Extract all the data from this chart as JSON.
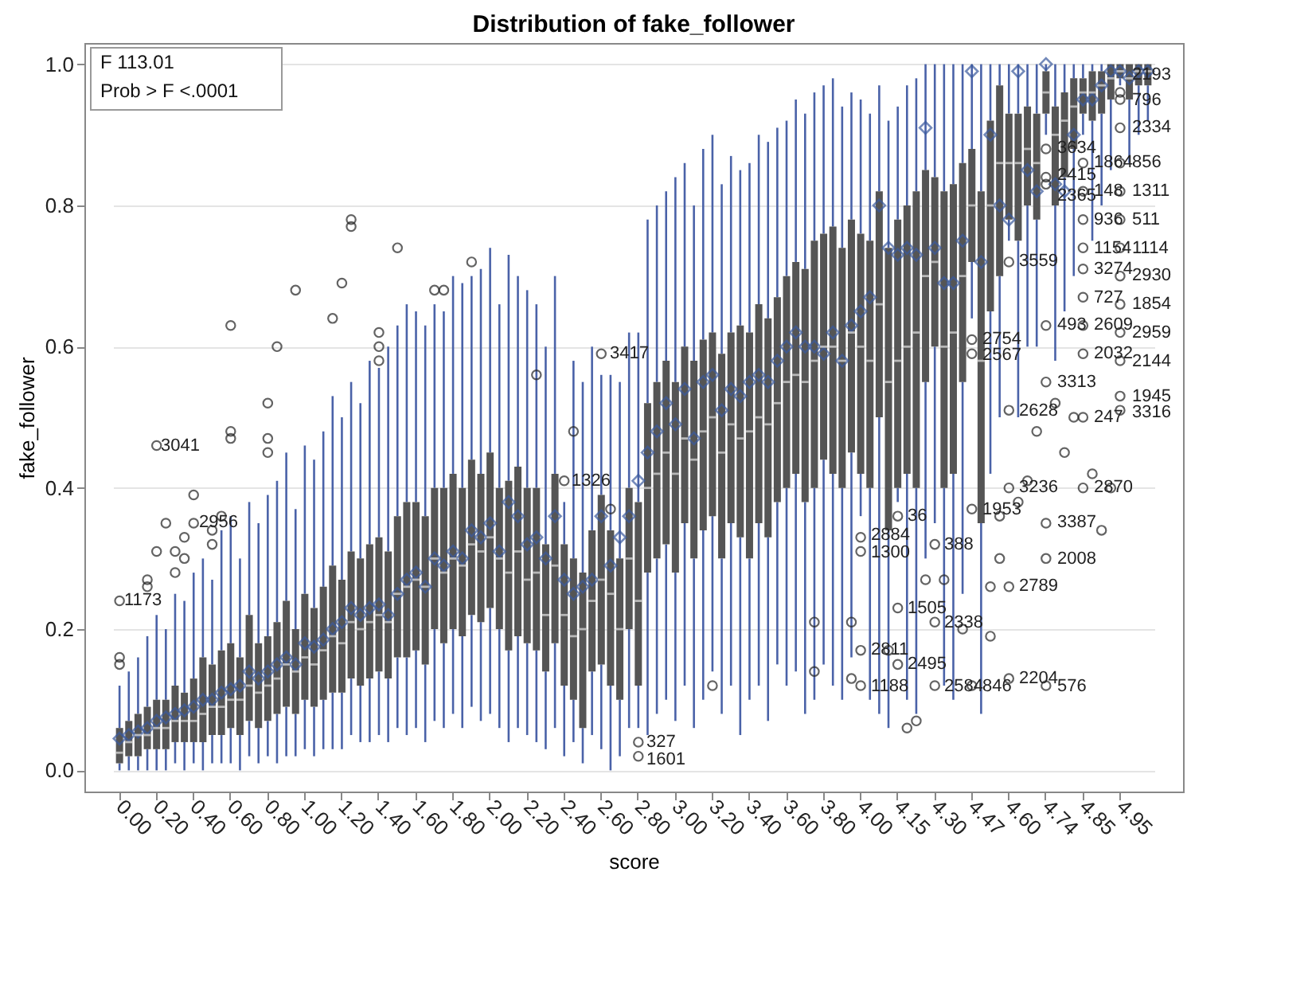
{
  "chart_data": {
    "type": "box",
    "title": "Distribution of fake_follower",
    "xlabel": "score",
    "ylabel": "fake_follower",
    "categories": [
      "0.00",
      null,
      null,
      null,
      "0.20",
      null,
      null,
      null,
      "0.40",
      null,
      null,
      null,
      "0.60",
      null,
      null,
      null,
      "0.80",
      null,
      null,
      null,
      "1.00",
      null,
      null,
      null,
      "1.20",
      null,
      null,
      null,
      "1.40",
      null,
      null,
      null,
      "1.60",
      null,
      null,
      null,
      "1.80",
      null,
      null,
      null,
      "2.00",
      null,
      null,
      null,
      "2.20",
      null,
      null,
      null,
      "2.40",
      null,
      null,
      null,
      "2.60",
      null,
      null,
      null,
      "2.80",
      null,
      null,
      null,
      "3.00",
      null,
      null,
      null,
      "3.20",
      null,
      null,
      null,
      "3.40",
      null,
      null,
      null,
      "3.60",
      null,
      null,
      null,
      "3.80",
      null,
      null,
      null,
      "4.00",
      null,
      null,
      null,
      "4.15",
      null,
      null,
      null,
      "4.30",
      null,
      null,
      null,
      "4.47",
      null,
      null,
      null,
      "4.60",
      null,
      null,
      null,
      "4.74",
      null,
      null,
      null,
      "4.85",
      null,
      null,
      null,
      "4.95",
      null,
      null,
      null
    ],
    "ylim": [
      -0.03,
      1.03
    ],
    "yticks": [
      {
        "value": 0,
        "label": "0.0"
      },
      {
        "value": 0.2,
        "label": "0.2"
      },
      {
        "value": 0.4,
        "label": "0.4"
      },
      {
        "value": 0.6,
        "label": "0.6"
      },
      {
        "value": 0.8,
        "label": "0.8"
      },
      {
        "value": 1,
        "label": "1.0"
      }
    ],
    "grid": "y",
    "series": [
      {
        "color": "#555555",
        "boxes": [
          {
            "low": 0.0,
            "q1": 0.01,
            "median": 0.025,
            "q3": 0.06,
            "high": 0.12,
            "mean": 0.045,
            "outliers": [
              0.15,
              0.16,
              0.24
            ]
          },
          {
            "low": 0.0,
            "q1": 0.02,
            "median": 0.04,
            "q3": 0.07,
            "high": 0.14,
            "mean": 0.05
          },
          {
            "low": 0.0,
            "q1": 0.02,
            "median": 0.05,
            "q3": 0.08,
            "high": 0.16,
            "mean": 0.055
          },
          {
            "low": 0.0,
            "q1": 0.03,
            "median": 0.05,
            "q3": 0.09,
            "high": 0.19,
            "mean": 0.06,
            "outliers": [
              0.26,
              0.27
            ]
          },
          {
            "low": 0.0,
            "q1": 0.03,
            "median": 0.06,
            "q3": 0.1,
            "high": 0.22,
            "mean": 0.07,
            "outliers": [
              0.31,
              0.46
            ]
          },
          {
            "low": 0.0,
            "q1": 0.03,
            "median": 0.06,
            "q3": 0.1,
            "high": 0.2,
            "mean": 0.075,
            "outliers": [
              0.35
            ]
          },
          {
            "low": 0.01,
            "q1": 0.04,
            "median": 0.07,
            "q3": 0.12,
            "high": 0.25,
            "mean": 0.08,
            "outliers": [
              0.28,
              0.31
            ]
          },
          {
            "low": 0.0,
            "q1": 0.04,
            "median": 0.07,
            "q3": 0.11,
            "high": 0.24,
            "mean": 0.085,
            "outliers": [
              0.3,
              0.33
            ]
          },
          {
            "low": 0.01,
            "q1": 0.04,
            "median": 0.07,
            "q3": 0.13,
            "high": 0.28,
            "mean": 0.09,
            "outliers": [
              0.35,
              0.39
            ]
          },
          {
            "low": 0.0,
            "q1": 0.04,
            "median": 0.08,
            "q3": 0.16,
            "high": 0.3,
            "mean": 0.1
          },
          {
            "low": 0.01,
            "q1": 0.05,
            "median": 0.09,
            "q3": 0.15,
            "high": 0.27,
            "mean": 0.1,
            "outliers": [
              0.32,
              0.34
            ]
          },
          {
            "low": 0.01,
            "q1": 0.05,
            "median": 0.09,
            "q3": 0.17,
            "high": 0.34,
            "mean": 0.11,
            "outliers": [
              0.36
            ]
          },
          {
            "low": 0.01,
            "q1": 0.06,
            "median": 0.1,
            "q3": 0.18,
            "high": 0.36,
            "mean": 0.115,
            "outliers": [
              0.47,
              0.48,
              0.63
            ]
          },
          {
            "low": 0.0,
            "q1": 0.05,
            "median": 0.1,
            "q3": 0.16,
            "high": 0.3,
            "mean": 0.12
          },
          {
            "low": 0.02,
            "q1": 0.07,
            "median": 0.12,
            "q3": 0.22,
            "high": 0.38,
            "mean": 0.14
          },
          {
            "low": 0.01,
            "q1": 0.06,
            "median": 0.11,
            "q3": 0.18,
            "high": 0.35,
            "mean": 0.13
          },
          {
            "low": 0.02,
            "q1": 0.07,
            "median": 0.12,
            "q3": 0.19,
            "high": 0.39,
            "mean": 0.14,
            "outliers": [
              0.45,
              0.47,
              0.52
            ]
          },
          {
            "low": 0.01,
            "q1": 0.08,
            "median": 0.13,
            "q3": 0.21,
            "high": 0.41,
            "mean": 0.15,
            "outliers": [
              0.6
            ]
          },
          {
            "low": 0.02,
            "q1": 0.09,
            "median": 0.15,
            "q3": 0.24,
            "high": 0.45,
            "mean": 0.16
          },
          {
            "low": 0.02,
            "q1": 0.08,
            "median": 0.14,
            "q3": 0.2,
            "high": 0.37,
            "mean": 0.15,
            "outliers": [
              0.68
            ]
          },
          {
            "low": 0.03,
            "q1": 0.1,
            "median": 0.16,
            "q3": 0.25,
            "high": 0.46,
            "mean": 0.18
          },
          {
            "low": 0.02,
            "q1": 0.09,
            "median": 0.15,
            "q3": 0.23,
            "high": 0.44,
            "mean": 0.175
          },
          {
            "low": 0.03,
            "q1": 0.1,
            "median": 0.17,
            "q3": 0.26,
            "high": 0.48,
            "mean": 0.185
          },
          {
            "low": 0.03,
            "q1": 0.11,
            "median": 0.19,
            "q3": 0.29,
            "high": 0.53,
            "mean": 0.2,
            "outliers": [
              0.64
            ]
          },
          {
            "low": 0.03,
            "q1": 0.11,
            "median": 0.18,
            "q3": 0.27,
            "high": 0.5,
            "mean": 0.21,
            "outliers": [
              0.69
            ]
          },
          {
            "low": 0.05,
            "q1": 0.13,
            "median": 0.21,
            "q3": 0.31,
            "high": 0.55,
            "mean": 0.23,
            "outliers": [
              0.77,
              0.78
            ]
          },
          {
            "low": 0.04,
            "q1": 0.12,
            "median": 0.2,
            "q3": 0.3,
            "high": 0.52,
            "mean": 0.22
          },
          {
            "low": 0.04,
            "q1": 0.13,
            "median": 0.21,
            "q3": 0.32,
            "high": 0.58,
            "mean": 0.23
          },
          {
            "low": 0.05,
            "q1": 0.14,
            "median": 0.22,
            "q3": 0.33,
            "high": 0.57,
            "mean": 0.235,
            "outliers": [
              0.58,
              0.6,
              0.62
            ]
          },
          {
            "low": 0.04,
            "q1": 0.13,
            "median": 0.21,
            "q3": 0.31,
            "high": 0.6,
            "mean": 0.22
          },
          {
            "low": 0.06,
            "q1": 0.16,
            "median": 0.25,
            "q3": 0.36,
            "high": 0.63,
            "mean": 0.25,
            "outliers": [
              0.74
            ]
          },
          {
            "low": 0.05,
            "q1": 0.16,
            "median": 0.26,
            "q3": 0.38,
            "high": 0.66,
            "mean": 0.27
          },
          {
            "low": 0.06,
            "q1": 0.17,
            "median": 0.27,
            "q3": 0.38,
            "high": 0.65,
            "mean": 0.28
          },
          {
            "low": 0.04,
            "q1": 0.15,
            "median": 0.26,
            "q3": 0.36,
            "high": 0.63,
            "mean": 0.26
          },
          {
            "low": 0.07,
            "q1": 0.2,
            "median": 0.3,
            "q3": 0.4,
            "high": 0.66,
            "mean": 0.3,
            "outliers": [
              0.68
            ]
          },
          {
            "low": 0.06,
            "q1": 0.18,
            "median": 0.28,
            "q3": 0.4,
            "high": 0.65,
            "mean": 0.29,
            "outliers": [
              0.68
            ]
          },
          {
            "low": 0.08,
            "q1": 0.2,
            "median": 0.3,
            "q3": 0.42,
            "high": 0.7,
            "mean": 0.31
          },
          {
            "low": 0.06,
            "q1": 0.19,
            "median": 0.29,
            "q3": 0.4,
            "high": 0.69,
            "mean": 0.3
          },
          {
            "low": 0.09,
            "q1": 0.22,
            "median": 0.32,
            "q3": 0.44,
            "high": 0.7,
            "mean": 0.34,
            "outliers": [
              0.72
            ]
          },
          {
            "low": 0.07,
            "q1": 0.21,
            "median": 0.31,
            "q3": 0.42,
            "high": 0.71,
            "mean": 0.33
          },
          {
            "low": 0.08,
            "q1": 0.23,
            "median": 0.33,
            "q3": 0.45,
            "high": 0.74,
            "mean": 0.35
          },
          {
            "low": 0.06,
            "q1": 0.2,
            "median": 0.3,
            "q3": 0.4,
            "high": 0.66,
            "mean": 0.31
          },
          {
            "low": 0.04,
            "q1": 0.17,
            "median": 0.28,
            "q3": 0.41,
            "high": 0.73,
            "mean": 0.38
          },
          {
            "low": 0.06,
            "q1": 0.19,
            "median": 0.31,
            "q3": 0.43,
            "high": 0.7,
            "mean": 0.36
          },
          {
            "low": 0.05,
            "q1": 0.18,
            "median": 0.27,
            "q3": 0.4,
            "high": 0.68,
            "mean": 0.32
          },
          {
            "low": 0.04,
            "q1": 0.17,
            "median": 0.28,
            "q3": 0.4,
            "high": 0.66,
            "mean": 0.33,
            "outliers": [
              0.56
            ]
          },
          {
            "low": 0.03,
            "q1": 0.14,
            "median": 0.22,
            "q3": 0.32,
            "high": 0.6,
            "mean": 0.3
          },
          {
            "low": 0.06,
            "q1": 0.18,
            "median": 0.29,
            "q3": 0.42,
            "high": 0.7,
            "mean": 0.36
          },
          {
            "low": 0.02,
            "q1": 0.12,
            "median": 0.22,
            "q3": 0.32,
            "high": 0.38,
            "mean": 0.27,
            "outliers": [
              0.41
            ]
          },
          {
            "low": 0.04,
            "q1": 0.1,
            "median": 0.19,
            "q3": 0.3,
            "high": 0.58,
            "mean": 0.25,
            "outliers": [
              0.48
            ]
          },
          {
            "low": 0.01,
            "q1": 0.06,
            "median": 0.2,
            "q3": 0.28,
            "high": 0.55,
            "mean": 0.26
          },
          {
            "low": 0.05,
            "q1": 0.14,
            "median": 0.24,
            "q3": 0.34,
            "high": 0.6,
            "mean": 0.27
          },
          {
            "low": 0.03,
            "q1": 0.15,
            "median": 0.27,
            "q3": 0.39,
            "high": 0.56,
            "mean": 0.36,
            "outliers": [
              0.59
            ]
          },
          {
            "low": 0.0,
            "q1": 0.12,
            "median": 0.25,
            "q3": 0.34,
            "high": 0.56,
            "mean": 0.29,
            "outliers": [
              0.37
            ]
          },
          {
            "low": 0.02,
            "q1": 0.1,
            "median": 0.2,
            "q3": 0.3,
            "high": 0.55,
            "mean": 0.33
          },
          {
            "low": 0.06,
            "q1": 0.2,
            "median": 0.3,
            "q3": 0.4,
            "high": 0.62,
            "mean": 0.36
          },
          {
            "low": 0.06,
            "q1": 0.12,
            "median": 0.24,
            "q3": 0.38,
            "high": 0.62,
            "mean": 0.41,
            "outliers": [
              0.04,
              0.02
            ]
          },
          {
            "low": 0.05,
            "q1": 0.28,
            "median": 0.4,
            "q3": 0.52,
            "high": 0.78,
            "mean": 0.45
          },
          {
            "low": 0.08,
            "q1": 0.3,
            "median": 0.42,
            "q3": 0.55,
            "high": 0.8,
            "mean": 0.48
          },
          {
            "low": 0.1,
            "q1": 0.32,
            "median": 0.45,
            "q3": 0.58,
            "high": 0.82,
            "mean": 0.52
          },
          {
            "low": 0.07,
            "q1": 0.28,
            "median": 0.42,
            "q3": 0.55,
            "high": 0.84,
            "mean": 0.49
          },
          {
            "low": 0.12,
            "q1": 0.35,
            "median": 0.47,
            "q3": 0.6,
            "high": 0.86,
            "mean": 0.54
          },
          {
            "low": 0.06,
            "q1": 0.3,
            "median": 0.44,
            "q3": 0.58,
            "high": 0.8,
            "mean": 0.47
          },
          {
            "low": 0.1,
            "q1": 0.34,
            "median": 0.48,
            "q3": 0.61,
            "high": 0.88,
            "mean": 0.55
          },
          {
            "low": 0.14,
            "q1": 0.36,
            "median": 0.5,
            "q3": 0.62,
            "high": 0.9,
            "mean": 0.56,
            "outliers": [
              0.12
            ]
          },
          {
            "low": 0.08,
            "q1": 0.3,
            "median": 0.45,
            "q3": 0.59,
            "high": 0.83,
            "mean": 0.51
          },
          {
            "low": 0.12,
            "q1": 0.35,
            "median": 0.49,
            "q3": 0.62,
            "high": 0.87,
            "mean": 0.54
          },
          {
            "low": 0.05,
            "q1": 0.33,
            "median": 0.47,
            "q3": 0.63,
            "high": 0.85,
            "mean": 0.53
          },
          {
            "low": 0.1,
            "q1": 0.3,
            "median": 0.48,
            "q3": 0.62,
            "high": 0.86,
            "mean": 0.55
          },
          {
            "low": 0.12,
            "q1": 0.35,
            "median": 0.5,
            "q3": 0.66,
            "high": 0.9,
            "mean": 0.56
          },
          {
            "low": 0.07,
            "q1": 0.33,
            "median": 0.49,
            "q3": 0.64,
            "high": 0.89,
            "mean": 0.55
          },
          {
            "low": 0.15,
            "q1": 0.38,
            "median": 0.52,
            "q3": 0.67,
            "high": 0.91,
            "mean": 0.58
          },
          {
            "low": 0.12,
            "q1": 0.4,
            "median": 0.55,
            "q3": 0.7,
            "high": 0.92,
            "mean": 0.6
          },
          {
            "low": 0.14,
            "q1": 0.42,
            "median": 0.56,
            "q3": 0.72,
            "high": 0.95,
            "mean": 0.62
          },
          {
            "low": 0.08,
            "q1": 0.38,
            "median": 0.55,
            "q3": 0.71,
            "high": 0.93,
            "mean": 0.6
          },
          {
            "low": 0.1,
            "q1": 0.4,
            "median": 0.58,
            "q3": 0.75,
            "high": 0.96,
            "mean": 0.6,
            "outliers": [
              0.14,
              0.21
            ]
          },
          {
            "low": 0.15,
            "q1": 0.44,
            "median": 0.6,
            "q3": 0.76,
            "high": 0.97,
            "mean": 0.59
          },
          {
            "low": 0.12,
            "q1": 0.42,
            "median": 0.6,
            "q3": 0.77,
            "high": 0.98,
            "mean": 0.62
          },
          {
            "low": 0.1,
            "q1": 0.4,
            "median": 0.58,
            "q3": 0.74,
            "high": 0.94,
            "mean": 0.58
          },
          {
            "low": 0.16,
            "q1": 0.45,
            "median": 0.62,
            "q3": 0.78,
            "high": 0.96,
            "mean": 0.63,
            "outliers": [
              0.13,
              0.21
            ]
          },
          {
            "low": 0.36,
            "q1": 0.42,
            "median": 0.6,
            "q3": 0.76,
            "high": 0.95,
            "mean": 0.65,
            "outliers": [
              0.17,
              0.12,
              0.33,
              0.31
            ]
          },
          {
            "low": 0.1,
            "q1": 0.4,
            "median": 0.58,
            "q3": 0.75,
            "high": 0.93,
            "mean": 0.67
          },
          {
            "low": 0.08,
            "q1": 0.5,
            "median": 0.66,
            "q3": 0.82,
            "high": 0.97,
            "mean": 0.8
          },
          {
            "low": 0.06,
            "q1": 0.34,
            "median": 0.55,
            "q3": 0.74,
            "high": 0.92,
            "mean": 0.74,
            "outliers": [
              0.17
            ]
          },
          {
            "low": 0.38,
            "q1": 0.4,
            "median": 0.58,
            "q3": 0.78,
            "high": 0.94,
            "mean": 0.73,
            "outliers": [
              0.23,
              0.15,
              0.36
            ]
          },
          {
            "low": 0.1,
            "q1": 0.42,
            "median": 0.6,
            "q3": 0.8,
            "high": 0.97,
            "mean": 0.74,
            "outliers": [
              0.06
            ]
          },
          {
            "low": 0.08,
            "q1": 0.4,
            "median": 0.62,
            "q3": 0.82,
            "high": 0.98,
            "mean": 0.73,
            "outliers": [
              0.07
            ]
          },
          {
            "low": 0.3,
            "q1": 0.55,
            "median": 0.7,
            "q3": 0.85,
            "high": 1.0,
            "mean": 0.91,
            "outliers": [
              0.27
            ]
          },
          {
            "low": 0.35,
            "q1": 0.6,
            "median": 0.72,
            "q3": 0.84,
            "high": 1.0,
            "mean": 0.74,
            "outliers": [
              0.21,
              0.12,
              0.32
            ]
          },
          {
            "low": 0.12,
            "q1": 0.4,
            "median": 0.6,
            "q3": 0.82,
            "high": 1.0,
            "mean": 0.69,
            "outliers": [
              0.27
            ]
          },
          {
            "low": 0.1,
            "q1": 0.42,
            "median": 0.62,
            "q3": 0.83,
            "high": 1.0,
            "mean": 0.69
          },
          {
            "low": 0.25,
            "q1": 0.55,
            "median": 0.7,
            "q3": 0.86,
            "high": 1.0,
            "mean": 0.75,
            "outliers": [
              0.2
            ]
          },
          {
            "low": 0.64,
            "q1": 0.72,
            "median": 0.8,
            "q3": 0.88,
            "high": 1.0,
            "mean": 0.99,
            "outliers": [
              0.12,
              0.37,
              0.61,
              0.59
            ]
          },
          {
            "low": 0.08,
            "q1": 0.35,
            "median": 0.58,
            "q3": 0.82,
            "high": 1.0,
            "mean": 0.72
          },
          {
            "low": 0.42,
            "q1": 0.65,
            "median": 0.8,
            "q3": 0.92,
            "high": 1.0,
            "mean": 0.9,
            "outliers": [
              0.26,
              0.19
            ]
          },
          {
            "low": 0.5,
            "q1": 0.7,
            "median": 0.86,
            "q3": 0.97,
            "high": 1.0,
            "mean": 0.8,
            "outliers": [
              0.36,
              0.3
            ]
          },
          {
            "low": 0.75,
            "q1": 0.78,
            "median": 0.86,
            "q3": 0.93,
            "high": 1.0,
            "mean": 0.78,
            "outliers": [
              0.72,
              0.51,
              0.4,
              0.26,
              0.13
            ]
          },
          {
            "low": 0.5,
            "q1": 0.75,
            "median": 0.86,
            "q3": 0.93,
            "high": 1.0,
            "mean": 0.99,
            "outliers": [
              0.38
            ]
          },
          {
            "low": 0.6,
            "q1": 0.8,
            "median": 0.88,
            "q3": 0.94,
            "high": 1.0,
            "mean": 0.85,
            "outliers": [
              0.41
            ]
          },
          {
            "low": 0.6,
            "q1": 0.78,
            "median": 0.86,
            "q3": 0.93,
            "high": 1.0,
            "mean": 0.82,
            "outliers": [
              0.48
            ]
          },
          {
            "low": 0.9,
            "q1": 0.93,
            "median": 0.96,
            "q3": 0.99,
            "high": 1.0,
            "mean": 1.0,
            "outliers": [
              0.88,
              0.84,
              0.83,
              0.63,
              0.55,
              0.35,
              0.3,
              0.12
            ]
          },
          {
            "low": 0.58,
            "q1": 0.8,
            "median": 0.9,
            "q3": 0.94,
            "high": 1.0,
            "mean": 0.83,
            "outliers": [
              0.52
            ]
          },
          {
            "low": 0.65,
            "q1": 0.84,
            "median": 0.92,
            "q3": 0.96,
            "high": 1.0,
            "mean": 0.82,
            "outliers": [
              0.45
            ]
          },
          {
            "low": 0.7,
            "q1": 0.88,
            "median": 0.94,
            "q3": 0.98,
            "high": 1.0,
            "mean": 0.9,
            "outliers": [
              0.5
            ]
          },
          {
            "low": 0.9,
            "q1": 0.93,
            "median": 0.96,
            "q3": 0.98,
            "high": 1.0,
            "mean": 0.95,
            "outliers": [
              0.86,
              0.82,
              0.78,
              0.74,
              0.71,
              0.67,
              0.63,
              0.59,
              0.5,
              0.4
            ]
          },
          {
            "low": 0.75,
            "q1": 0.92,
            "median": 0.96,
            "q3": 0.99,
            "high": 1.0,
            "mean": 0.95,
            "outliers": [
              0.42
            ]
          },
          {
            "low": 0.8,
            "q1": 0.93,
            "median": 0.97,
            "q3": 0.99,
            "high": 1.0,
            "mean": 0.97,
            "outliers": [
              0.34
            ]
          },
          {
            "low": 0.85,
            "q1": 0.95,
            "median": 0.98,
            "q3": 1.0,
            "high": 1.0,
            "mean": 0.99,
            "outliers": [
              0.4
            ]
          },
          {
            "low": 0.97,
            "q1": 0.98,
            "median": 0.99,
            "q3": 1.0,
            "high": 1.0,
            "mean": 0.99,
            "outliers": [
              0.96,
              0.95,
              0.91,
              0.86,
              0.82,
              0.78,
              0.74,
              0.7,
              0.66,
              0.62,
              0.58,
              0.53,
              0.51
            ]
          },
          {
            "low": 0.86,
            "q1": 0.95,
            "median": 0.98,
            "q3": 1.0,
            "high": 1.0,
            "mean": 0.98
          },
          {
            "low": 0.9,
            "q1": 0.97,
            "median": 0.99,
            "q3": 1.0,
            "high": 1.0,
            "mean": 0.99
          },
          {
            "low": 0.92,
            "q1": 0.97,
            "median": 0.99,
            "q3": 1.0,
            "high": 1.0,
            "mean": 0.99
          }
        ]
      }
    ],
    "annotations": [
      "F 113.01",
      "Prob > F <.0001",
      "1173",
      "3041",
      "2956",
      "1326",
      "3417",
      "327",
      "1601",
      "2811",
      "1188",
      "2884",
      "1300",
      "1505",
      "2495",
      "36",
      "2338",
      "2584",
      "388",
      "846",
      "1953",
      "2754",
      "2567",
      "3559",
      "2628",
      "3236",
      "2789",
      "2204",
      "3634",
      "2415",
      "2365",
      "493",
      "3313",
      "3387",
      "2008",
      "576",
      "148",
      "936",
      "1154",
      "3274",
      "727",
      "2609",
      "2032",
      "247",
      "2870",
      "1864",
      "2193",
      "796",
      "2334",
      "856",
      "1311",
      "511",
      "1114",
      "2930",
      "1854",
      "2959",
      "2144",
      "1945",
      "3316"
    ]
  }
}
